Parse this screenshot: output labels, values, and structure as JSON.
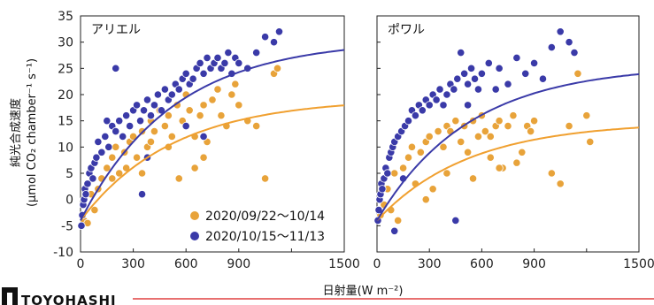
{
  "chart_data": {
    "type": "scatter",
    "ylabel_line1": "純光合成速度",
    "ylabel_line2": "(μmol CO₂ chamber⁻¹ s⁻¹)",
    "xlabel": "日射量(W m⁻²)",
    "xlim": [
      0,
      1500
    ],
    "ylim": [
      -10,
      35
    ],
    "xticks": [
      "0",
      "300",
      "600",
      "900",
      "1500"
    ],
    "xticks_right": [
      "0",
      "300",
      "600",
      "900",
      "1500"
    ],
    "yticks": [
      "35",
      "30",
      "25",
      "20",
      "15",
      "10",
      "5",
      "0",
      "-5",
      "-10"
    ],
    "legend_position": "bottom-right",
    "colors": {
      "orange": "#E8A33A",
      "blue": "#3A3AA8",
      "orange_curve": "#F0A030",
      "blue_curve": "#3A3AA8"
    },
    "series": [
      {
        "name": "2020/09/22～10/14",
        "color": "#E8A33A"
      },
      {
        "name": "2020/10/15～11/13",
        "color": "#3A3AA8"
      }
    ],
    "panels": [
      {
        "title": "アリエル",
        "orange_points": [
          [
            20,
            -4
          ],
          [
            40,
            -4.5
          ],
          [
            60,
            1
          ],
          [
            80,
            -2
          ],
          [
            100,
            2
          ],
          [
            120,
            4
          ],
          [
            150,
            6
          ],
          [
            180,
            8
          ],
          [
            200,
            10
          ],
          [
            220,
            5
          ],
          [
            250,
            9
          ],
          [
            280,
            11
          ],
          [
            300,
            12
          ],
          [
            320,
            8
          ],
          [
            350,
            13
          ],
          [
            380,
            10
          ],
          [
            400,
            15
          ],
          [
            420,
            13
          ],
          [
            450,
            17
          ],
          [
            480,
            14
          ],
          [
            500,
            16
          ],
          [
            520,
            12
          ],
          [
            550,
            18
          ],
          [
            580,
            15
          ],
          [
            600,
            20
          ],
          [
            620,
            17
          ],
          [
            650,
            6
          ],
          [
            680,
            16
          ],
          [
            700,
            18
          ],
          [
            720,
            11
          ],
          [
            750,
            19
          ],
          [
            780,
            21
          ],
          [
            800,
            16
          ],
          [
            830,
            14
          ],
          [
            860,
            20
          ],
          [
            880,
            22
          ],
          [
            900,
            18
          ],
          [
            950,
            15
          ],
          [
            1000,
            14
          ],
          [
            1050,
            4
          ],
          [
            1100,
            24
          ],
          [
            1120,
            25
          ],
          [
            180,
            4
          ],
          [
            260,
            6
          ],
          [
            350,
            5
          ],
          [
            500,
            10
          ],
          [
            560,
            4
          ],
          [
            650,
            12
          ],
          [
            700,
            8
          ],
          [
            400,
            11
          ]
        ],
        "blue_points": [
          [
            5,
            -5
          ],
          [
            10,
            -3
          ],
          [
            15,
            -1
          ],
          [
            20,
            0
          ],
          [
            25,
            2
          ],
          [
            30,
            1
          ],
          [
            40,
            3
          ],
          [
            50,
            5
          ],
          [
            60,
            6
          ],
          [
            70,
            4
          ],
          [
            80,
            7
          ],
          [
            90,
            8
          ],
          [
            100,
            11
          ],
          [
            120,
            9
          ],
          [
            140,
            12
          ],
          [
            160,
            10
          ],
          [
            180,
            14
          ],
          [
            200,
            13
          ],
          [
            220,
            15
          ],
          [
            240,
            12
          ],
          [
            260,
            16
          ],
          [
            280,
            14
          ],
          [
            300,
            17
          ],
          [
            320,
            18
          ],
          [
            340,
            15
          ],
          [
            360,
            17
          ],
          [
            380,
            19
          ],
          [
            400,
            16
          ],
          [
            420,
            18
          ],
          [
            440,
            20
          ],
          [
            460,
            17
          ],
          [
            480,
            21
          ],
          [
            500,
            19
          ],
          [
            520,
            20
          ],
          [
            540,
            22
          ],
          [
            560,
            21
          ],
          [
            580,
            23
          ],
          [
            600,
            24
          ],
          [
            620,
            22
          ],
          [
            640,
            23
          ],
          [
            660,
            25
          ],
          [
            680,
            26
          ],
          [
            700,
            24
          ],
          [
            720,
            27
          ],
          [
            740,
            25
          ],
          [
            760,
            26
          ],
          [
            780,
            27
          ],
          [
            800,
            25
          ],
          [
            820,
            26
          ],
          [
            840,
            28
          ],
          [
            860,
            24
          ],
          [
            880,
            27
          ],
          [
            900,
            26
          ],
          [
            950,
            25
          ],
          [
            1000,
            28
          ],
          [
            1050,
            31
          ],
          [
            1100,
            30
          ],
          [
            1130,
            32
          ],
          [
            200,
            25
          ],
          [
            350,
            1
          ],
          [
            600,
            14
          ],
          [
            700,
            12
          ],
          [
            150,
            15
          ],
          [
            380,
            8
          ]
        ],
        "orange_curve_max": 19.3,
        "blue_curve_max": 30.5
      },
      {
        "title": "ポワル",
        "orange_points": [
          [
            20,
            -3
          ],
          [
            40,
            -1
          ],
          [
            60,
            2
          ],
          [
            80,
            -2
          ],
          [
            100,
            5
          ],
          [
            120,
            -4
          ],
          [
            150,
            6
          ],
          [
            180,
            8
          ],
          [
            200,
            10
          ],
          [
            220,
            3
          ],
          [
            250,
            9
          ],
          [
            280,
            11
          ],
          [
            300,
            12
          ],
          [
            320,
            2
          ],
          [
            350,
            13
          ],
          [
            380,
            10
          ],
          [
            400,
            14
          ],
          [
            420,
            13
          ],
          [
            450,
            15
          ],
          [
            480,
            11
          ],
          [
            500,
            14
          ],
          [
            520,
            9
          ],
          [
            550,
            15
          ],
          [
            580,
            12
          ],
          [
            600,
            16
          ],
          [
            620,
            13
          ],
          [
            650,
            8
          ],
          [
            680,
            14
          ],
          [
            700,
            15
          ],
          [
            720,
            6
          ],
          [
            750,
            14
          ],
          [
            780,
            16
          ],
          [
            800,
            7
          ],
          [
            830,
            9
          ],
          [
            860,
            14
          ],
          [
            880,
            13
          ],
          [
            900,
            15
          ],
          [
            1000,
            5
          ],
          [
            1050,
            3
          ],
          [
            1100,
            14
          ],
          [
            1150,
            24
          ],
          [
            1200,
            16
          ],
          [
            1220,
            11
          ],
          [
            280,
            0
          ],
          [
            400,
            5
          ],
          [
            550,
            4
          ],
          [
            650,
            12
          ],
          [
            700,
            6
          ]
        ],
        "blue_points": [
          [
            5,
            -4
          ],
          [
            10,
            -2
          ],
          [
            15,
            0
          ],
          [
            20,
            1
          ],
          [
            25,
            3
          ],
          [
            30,
            2
          ],
          [
            40,
            4
          ],
          [
            50,
            6
          ],
          [
            60,
            5
          ],
          [
            70,
            8
          ],
          [
            80,
            9
          ],
          [
            90,
            10
          ],
          [
            100,
            11
          ],
          [
            120,
            12
          ],
          [
            140,
            13
          ],
          [
            160,
            14
          ],
          [
            180,
            15
          ],
          [
            200,
            17
          ],
          [
            220,
            16
          ],
          [
            240,
            18
          ],
          [
            260,
            17
          ],
          [
            280,
            19
          ],
          [
            300,
            18
          ],
          [
            320,
            20
          ],
          [
            340,
            19
          ],
          [
            360,
            21
          ],
          [
            380,
            18
          ],
          [
            400,
            20
          ],
          [
            420,
            22
          ],
          [
            440,
            21
          ],
          [
            460,
            23
          ],
          [
            480,
            28
          ],
          [
            500,
            24
          ],
          [
            520,
            22
          ],
          [
            540,
            25
          ],
          [
            560,
            23
          ],
          [
            580,
            21
          ],
          [
            600,
            24
          ],
          [
            640,
            26
          ],
          [
            680,
            21
          ],
          [
            700,
            25
          ],
          [
            750,
            22
          ],
          [
            800,
            27
          ],
          [
            850,
            24
          ],
          [
            900,
            26
          ],
          [
            950,
            23
          ],
          [
            1000,
            29
          ],
          [
            1050,
            32
          ],
          [
            1100,
            30
          ],
          [
            1130,
            28
          ],
          [
            450,
            -4
          ],
          [
            100,
            -6
          ],
          [
            150,
            4
          ],
          [
            520,
            18
          ]
        ],
        "orange_curve_max": 14.8,
        "blue_curve_max": 25.6
      }
    ]
  },
  "footer": {
    "logo_text": "TOYOHASHI",
    "accent_line_color": "#E04040"
  }
}
